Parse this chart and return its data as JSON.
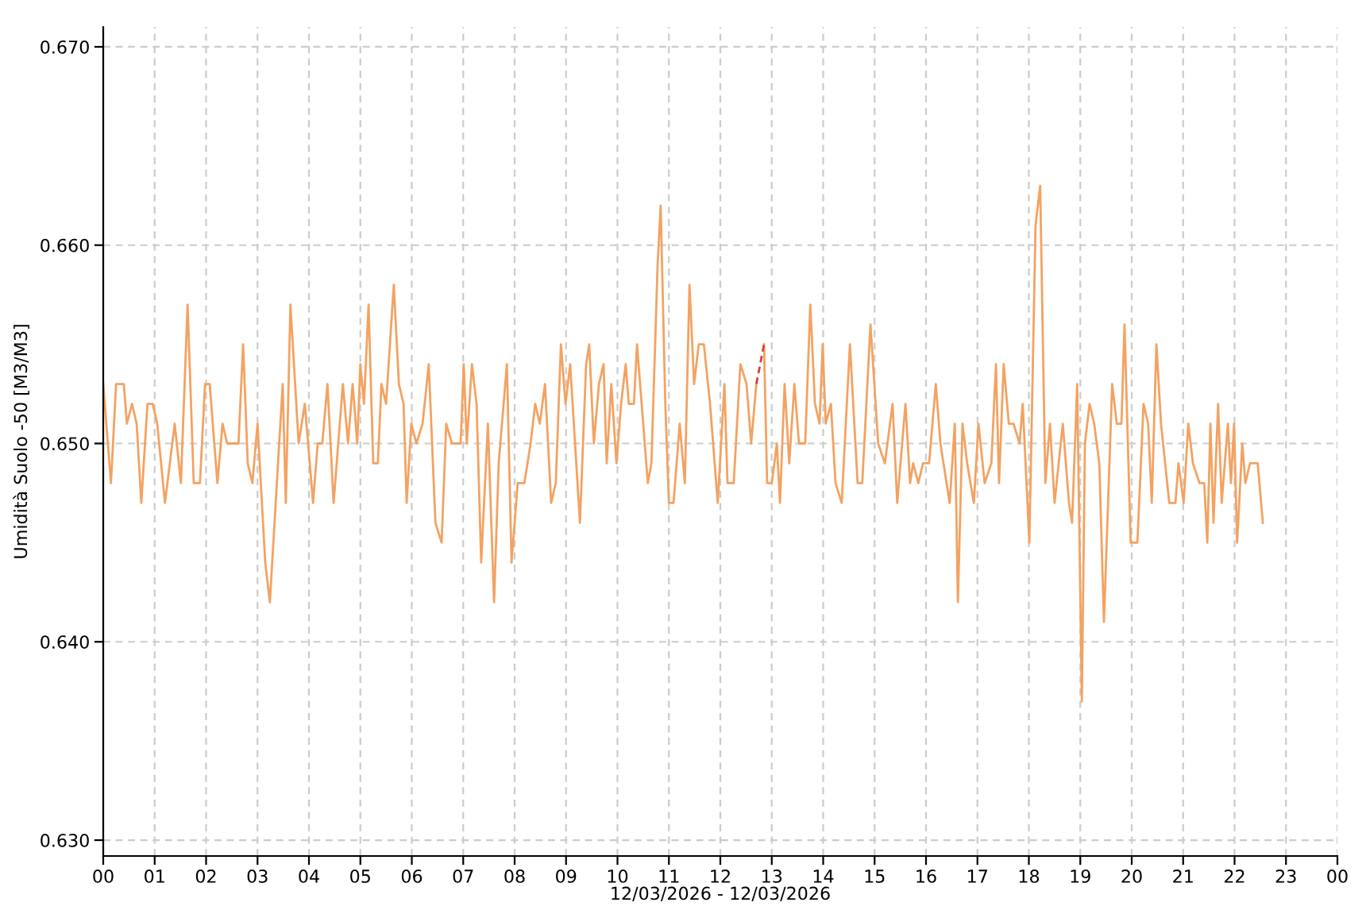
{
  "chart_data": {
    "type": "line",
    "xlabel": "12/03/2026 - 12/03/2026",
    "ylabel": "Umidità Suolo -50 [M3/M3]",
    "xlim": [
      0,
      24
    ],
    "ylim": [
      0.6292,
      0.671
    ],
    "xticks": [
      {
        "value": 0,
        "label": "00"
      },
      {
        "value": 1,
        "label": "01"
      },
      {
        "value": 2,
        "label": "02"
      },
      {
        "value": 3,
        "label": "03"
      },
      {
        "value": 4,
        "label": "04"
      },
      {
        "value": 5,
        "label": "05"
      },
      {
        "value": 6,
        "label": "06"
      },
      {
        "value": 7,
        "label": "07"
      },
      {
        "value": 8,
        "label": "08"
      },
      {
        "value": 9,
        "label": "09"
      },
      {
        "value": 10,
        "label": "10"
      },
      {
        "value": 11,
        "label": "11"
      },
      {
        "value": 12,
        "label": "12"
      },
      {
        "value": 13,
        "label": "13"
      },
      {
        "value": 14,
        "label": "14"
      },
      {
        "value": 15,
        "label": "15"
      },
      {
        "value": 16,
        "label": "16"
      },
      {
        "value": 17,
        "label": "17"
      },
      {
        "value": 18,
        "label": "18"
      },
      {
        "value": 19,
        "label": "19"
      },
      {
        "value": 20,
        "label": "20"
      },
      {
        "value": 21,
        "label": "21"
      },
      {
        "value": 22,
        "label": "22"
      },
      {
        "value": 23,
        "label": "23"
      },
      {
        "value": 24,
        "label": "00"
      }
    ],
    "yticks": [
      {
        "value": 0.63,
        "label": "0.630"
      },
      {
        "value": 0.64,
        "label": "0.640"
      },
      {
        "value": 0.65,
        "label": "0.650"
      },
      {
        "value": 0.66,
        "label": "0.660"
      },
      {
        "value": 0.67,
        "label": "0.670"
      }
    ],
    "grid": true,
    "series": [
      {
        "color": "#f4a261",
        "line_style": "solid",
        "x": [
          0,
          0.15,
          0.25,
          0.4,
          0.46,
          0.56,
          0.65,
          0.74,
          0.86,
          0.96,
          1.05,
          1.2,
          1.39,
          1.51,
          1.64,
          1.76,
          1.88,
          1.98,
          2.07,
          2.22,
          2.32,
          2.41,
          2.63,
          2.72,
          2.81,
          2.9,
          3.0,
          3.15,
          3.24,
          3.49,
          3.55,
          3.64,
          3.8,
          3.92,
          4.08,
          4.17,
          4.26,
          4.36,
          4.48,
          4.66,
          4.76,
          4.85,
          4.94,
          5.0,
          5.07,
          5.16,
          5.25,
          5.34,
          5.41,
          5.5,
          5.65,
          5.75,
          5.84,
          5.9,
          5.99,
          6.09,
          6.21,
          6.33,
          6.46,
          6.58,
          6.67,
          6.78,
          6.95,
          7.01,
          7.07,
          7.17,
          7.26,
          7.35,
          7.48,
          7.6,
          7.69,
          7.85,
          7.94,
          8.06,
          8.19,
          8.31,
          8.4,
          8.49,
          8.59,
          8.71,
          8.8,
          8.9,
          8.99,
          9.08,
          9.27,
          9.39,
          9.45,
          9.54,
          9.64,
          9.73,
          9.79,
          9.88,
          9.98,
          10.07,
          10.16,
          10.22,
          10.32,
          10.38,
          10.47,
          10.59,
          10.66,
          10.78,
          10.84,
          10.93,
          11.0,
          11.09,
          11.21,
          11.31,
          11.4,
          11.49,
          11.58,
          11.68,
          11.8,
          11.95,
          12.08,
          12.14,
          12.26,
          12.39,
          12.51,
          12.6,
          12.7,
          12.78,
          12.85,
          12.91,
          13.0,
          13.1,
          13.16,
          13.25,
          13.34,
          13.44,
          13.53,
          13.65,
          13.75,
          13.84,
          13.93,
          13.99,
          14.05,
          14.15,
          14.24,
          14.36,
          14.52,
          14.67,
          14.76,
          14.92,
          15.07,
          15.2,
          15.35,
          15.44,
          15.6,
          15.69,
          15.75,
          15.85,
          15.94,
          16.06,
          16.19,
          16.28,
          16.34,
          16.46,
          16.56,
          16.62,
          16.71,
          16.8,
          16.93,
          17.02,
          17.14,
          17.27,
          17.36,
          17.42,
          17.51,
          17.61,
          17.7,
          17.82,
          17.88,
          18.01,
          18.13,
          18.22,
          18.32,
          18.41,
          18.5,
          18.66,
          18.78,
          18.84,
          18.94,
          19.03,
          19.09,
          19.18,
          19.27,
          19.37,
          19.46,
          19.62,
          19.71,
          19.8,
          19.86,
          19.98,
          20.11,
          20.23,
          20.32,
          20.39,
          20.48,
          20.57,
          20.73,
          20.85,
          20.91,
          21.01,
          21.1,
          21.19,
          21.32,
          21.41,
          21.47,
          21.53,
          21.59,
          21.68,
          21.75,
          21.87,
          21.93,
          21.99,
          22.05,
          22.15,
          22.21,
          22.3,
          22.45,
          22.55
        ],
        "values": [
          0.653,
          0.648,
          0.653,
          0.653,
          0.651,
          0.652,
          0.651,
          0.647,
          0.652,
          0.652,
          0.651,
          0.647,
          0.651,
          0.648,
          0.657,
          0.648,
          0.648,
          0.653,
          0.653,
          0.648,
          0.651,
          0.65,
          0.65,
          0.655,
          0.649,
          0.648,
          0.651,
          0.644,
          0.642,
          0.653,
          0.647,
          0.657,
          0.65,
          0.652,
          0.647,
          0.65,
          0.65,
          0.653,
          0.647,
          0.653,
          0.65,
          0.653,
          0.65,
          0.654,
          0.652,
          0.657,
          0.649,
          0.649,
          0.653,
          0.652,
          0.658,
          0.653,
          0.652,
          0.647,
          0.651,
          0.65,
          0.651,
          0.654,
          0.646,
          0.645,
          0.651,
          0.65,
          0.65,
          0.654,
          0.65,
          0.654,
          0.652,
          0.644,
          0.651,
          0.642,
          0.649,
          0.654,
          0.644,
          0.648,
          0.648,
          0.65,
          0.652,
          0.651,
          0.653,
          0.647,
          0.648,
          0.655,
          0.652,
          0.654,
          0.646,
          0.654,
          0.655,
          0.65,
          0.653,
          0.654,
          0.649,
          0.653,
          0.649,
          0.652,
          0.654,
          0.652,
          0.652,
          0.655,
          0.652,
          0.648,
          0.649,
          0.659,
          0.662,
          0.652,
          0.647,
          0.647,
          0.651,
          0.648,
          0.658,
          0.653,
          0.655,
          0.655,
          0.652,
          0.647,
          0.653,
          0.648,
          0.648,
          0.654,
          0.653,
          0.65,
          0.653,
          null,
          0.655,
          0.648,
          0.648,
          0.65,
          0.647,
          0.653,
          0.649,
          0.653,
          0.65,
          0.65,
          0.657,
          0.652,
          0.651,
          0.655,
          0.651,
          0.652,
          0.648,
          0.647,
          0.655,
          0.648,
          0.648,
          0.656,
          0.65,
          0.649,
          0.652,
          0.647,
          0.652,
          0.648,
          0.649,
          0.648,
          0.649,
          0.649,
          0.653,
          0.65,
          0.649,
          0.647,
          0.651,
          0.642,
          0.651,
          0.649,
          0.647,
          0.651,
          0.648,
          0.649,
          0.654,
          0.648,
          0.654,
          0.651,
          0.651,
          0.65,
          0.652,
          0.645,
          0.661,
          0.663,
          0.648,
          0.651,
          0.647,
          0.651,
          0.647,
          0.646,
          0.653,
          0.637,
          0.65,
          0.652,
          0.651,
          0.649,
          0.641,
          0.653,
          0.651,
          0.651,
          0.656,
          0.645,
          0.645,
          0.652,
          0.651,
          0.647,
          0.655,
          0.651,
          0.647,
          0.647,
          0.649,
          0.647,
          0.651,
          0.649,
          0.648,
          0.648,
          0.645,
          0.651,
          0.646,
          0.652,
          0.647,
          0.651,
          0.648,
          0.651,
          0.645,
          0.65,
          0.648,
          0.649,
          0.649,
          0.646
        ]
      },
      {
        "color": "#e03c3c",
        "line_style": "dashed",
        "x": [
          12.7,
          12.85
        ],
        "values": [
          0.653,
          0.655
        ]
      }
    ]
  }
}
